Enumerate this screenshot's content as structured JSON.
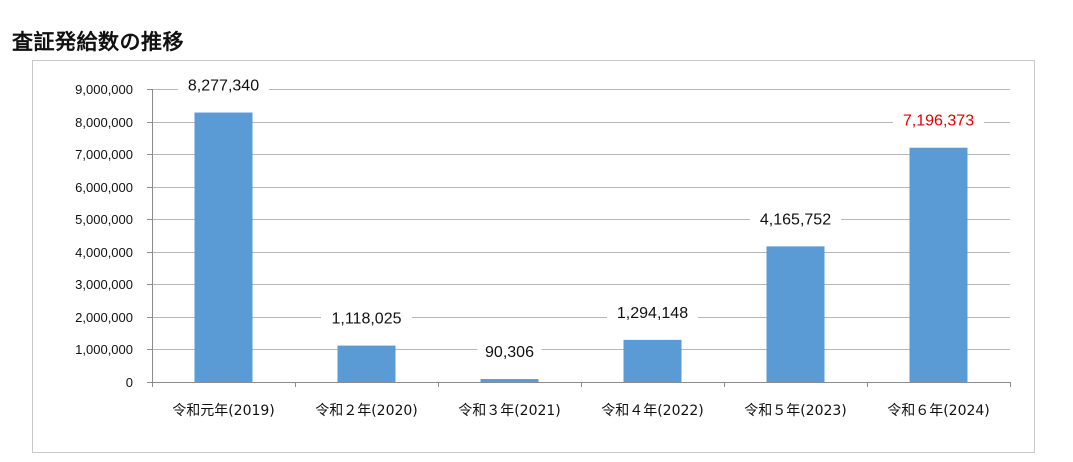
{
  "page": {
    "title": "査証発給数の推移"
  },
  "chart_data": {
    "type": "bar",
    "title": "",
    "xlabel": "",
    "ylabel": "",
    "categories": [
      "令和元年(2019)",
      "令和２年(2020)",
      "令和３年(2021)",
      "令和４年(2022)",
      "令和５年(2023)",
      "令和６年(2024)"
    ],
    "values": [
      8277340,
      1118025,
      90306,
      1294148,
      4165752,
      7196373
    ],
    "value_labels": [
      "8,277,340",
      "1,118,025",
      "90,306",
      "1,294,148",
      "4,165,752",
      "7,196,373"
    ],
    "ylim": [
      0,
      9000000
    ],
    "yticks": [
      0,
      1000000,
      2000000,
      3000000,
      4000000,
      5000000,
      6000000,
      7000000,
      8000000,
      9000000
    ],
    "ytick_labels": [
      "0",
      "1,000,000",
      "2,000,000",
      "3,000,000",
      "4,000,000",
      "5,000,000",
      "6,000,000",
      "7,000,000",
      "8,000,000",
      "9,000,000"
    ],
    "grid": true,
    "legend": "none",
    "colors": {
      "bar": "#5b9bd5",
      "label": "#111111",
      "highlight_label": "#e00000",
      "grid": "#b7b7b7"
    },
    "highlight_index": 5
  }
}
